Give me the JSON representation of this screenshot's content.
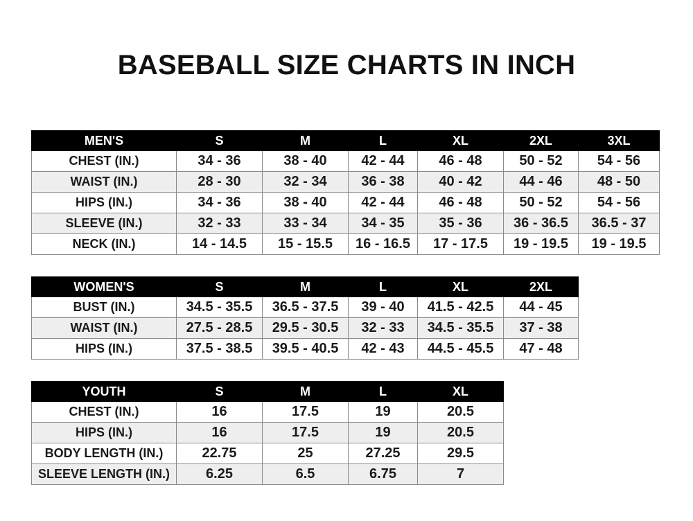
{
  "title": "BASEBALL SIZE CHARTS IN INCH",
  "tables": {
    "men": {
      "header": [
        "MEN'S",
        "S",
        "M",
        "L",
        "XL",
        "2XL",
        "3XL"
      ],
      "rows": [
        [
          "CHEST (IN.)",
          "34 - 36",
          "38 - 40",
          "42 - 44",
          "46 - 48",
          "50 - 52",
          "54 - 56"
        ],
        [
          "WAIST (IN.)",
          "28 - 30",
          "32 - 34",
          "36 - 38",
          "40 - 42",
          "44 - 46",
          "48 - 50"
        ],
        [
          "HIPS (IN.)",
          "34 - 36",
          "38 - 40",
          "42 - 44",
          "46 - 48",
          "50 - 52",
          "54 - 56"
        ],
        [
          "SLEEVE (IN.)",
          "32 - 33",
          "33 - 34",
          "34 - 35",
          "35 - 36",
          "36 - 36.5",
          "36.5 - 37"
        ],
        [
          "NECK (IN.)",
          "14 - 14.5",
          "15 - 15.5",
          "16 - 16.5",
          "17 - 17.5",
          "19 - 19.5",
          "19 - 19.5"
        ]
      ]
    },
    "women": {
      "header": [
        "WOMEN'S",
        "S",
        "M",
        "L",
        "XL",
        "2XL"
      ],
      "rows": [
        [
          "BUST (IN.)",
          "34.5 - 35.5",
          "36.5 - 37.5",
          "39 - 40",
          "41.5 - 42.5",
          "44 - 45"
        ],
        [
          "WAIST (IN.)",
          "27.5 - 28.5",
          "29.5 - 30.5",
          "32 - 33",
          "34.5 - 35.5",
          "37 - 38"
        ],
        [
          "HIPS (IN.)",
          "37.5 - 38.5",
          "39.5 - 40.5",
          "42 - 43",
          "44.5 - 45.5",
          "47 - 48"
        ]
      ]
    },
    "youth": {
      "header": [
        "YOUTH",
        "S",
        "M",
        "L",
        "XL"
      ],
      "rows": [
        [
          "CHEST (IN.)",
          "16",
          "17.5",
          "19",
          "20.5"
        ],
        [
          "HIPS (IN.)",
          "16",
          "17.5",
          "19",
          "20.5"
        ],
        [
          "BODY LENGTH (IN.)",
          "22.75",
          "25",
          "27.25",
          "29.5"
        ],
        [
          "SLEEVE LENGTH (IN.)",
          "6.25",
          "6.5",
          "6.75",
          "7"
        ]
      ]
    }
  }
}
